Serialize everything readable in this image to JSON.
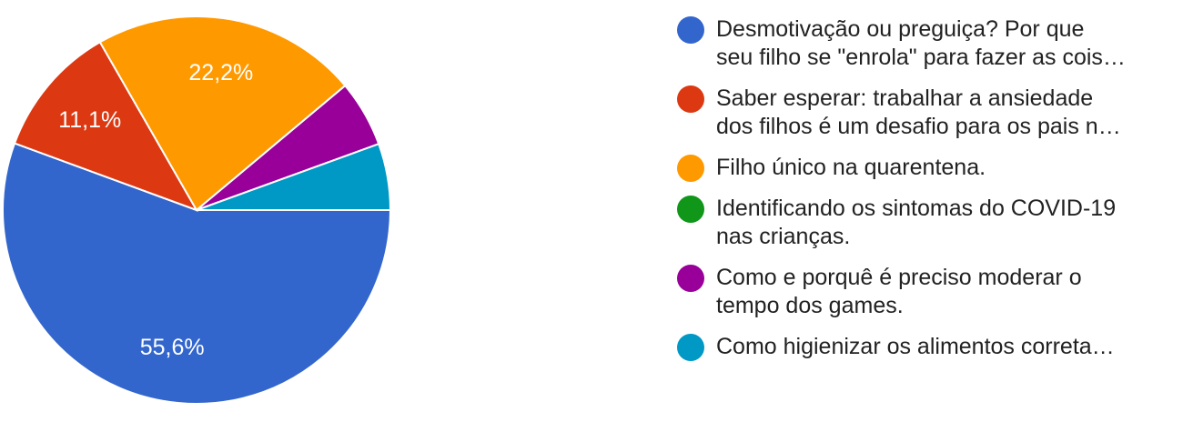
{
  "chart_data": {
    "type": "pie",
    "slices": [
      {
        "label": "Desmotivação ou preguiça? Por que\nseu filho se \"enrola\" para fazer as cois…",
        "value": 55.6,
        "value_label": "55,6%",
        "color": "#3366cc"
      },
      {
        "label": "Saber esperar: trabalhar a ansiedade\ndos filhos é um desafio para os pais n…",
        "value": 11.1,
        "value_label": "11,1%",
        "color": "#dc3912"
      },
      {
        "label": "Filho único na quarentena.",
        "value": 22.2,
        "value_label": "22,2%",
        "color": "#ff9900"
      },
      {
        "label": "Identificando os sintomas do COVID-19\nnas crianças.",
        "value": 0,
        "value_label": "",
        "color": "#109618"
      },
      {
        "label": "Como e porquê é preciso moderar o\ntempo dos games.",
        "value": 5.55,
        "value_label": "",
        "color": "#990099"
      },
      {
        "label": "Como higienizar os alimentos correta…",
        "value": 5.55,
        "value_label": "",
        "color": "#0099c6"
      }
    ],
    "legend_position": "right"
  }
}
